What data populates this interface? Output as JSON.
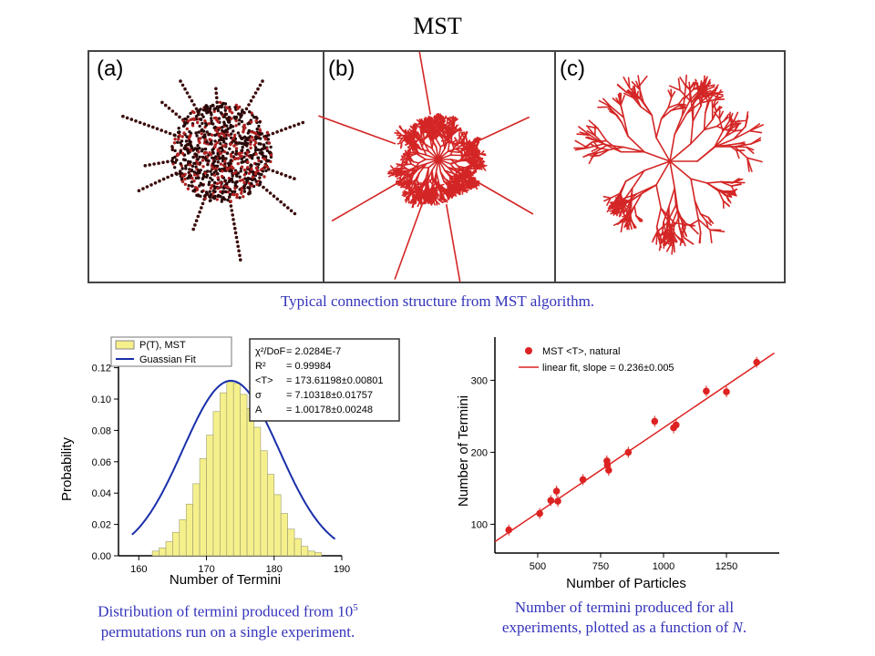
{
  "title": "MST",
  "panels": [
    {
      "label": "(a)"
    },
    {
      "label": "(b)"
    },
    {
      "label": "(c)"
    }
  ],
  "captions": {
    "top": "Typical connection structure from MST algorithm.",
    "left_line1": "Distribution of termini produced from 10",
    "left_sup": "5",
    "left_line2": "permutations run on a single experiment.",
    "right_line1": "Number of termini produced for all",
    "right_line2a": "experiments, plotted as a function of ",
    "right_line2b": "N",
    "right_line2c": "."
  },
  "colors": {
    "accent": "#dd2222",
    "histfill": "#f6f08c",
    "fit": "#1a2faa",
    "caption": "#3333bb"
  },
  "chart_data": [
    {
      "type": "bar",
      "xlabel": "Number of Termini",
      "ylabel": "Probability",
      "xlim": [
        157,
        190
      ],
      "ylim": [
        0,
        0.125
      ],
      "xticks": [
        160,
        170,
        180,
        190
      ],
      "yticks": [
        "0.00",
        "0.02",
        "0.04",
        "0.06",
        "0.08",
        "0.10",
        "0.12"
      ],
      "legend": [
        "P(T), MST",
        "Guassian Fit"
      ],
      "fit": {
        "mean": 173.61198,
        "sigma": 7.10318,
        "A": 1.00178
      },
      "stats": [
        {
          "name": "χ²/DoF",
          "value": "= 2.0284E-7"
        },
        {
          "name": "R²",
          "value": "= 0.99984"
        },
        {
          "name": "<T>",
          "value": "= 173.61198±0.00801"
        },
        {
          "name": "σ",
          "value": "= 7.10318±0.01757"
        },
        {
          "name": "A",
          "value": "= 1.00178±0.00248"
        }
      ],
      "bin_centers": [
        162.5,
        163.5,
        164.5,
        165.5,
        166.5,
        167.5,
        168.5,
        169.5,
        170.5,
        171.5,
        172.5,
        173.5,
        174.5,
        175.5,
        176.5,
        177.5,
        178.5,
        179.5,
        180.5,
        181.5,
        182.5,
        183.5,
        184.5,
        185.5,
        186.5
      ],
      "values": [
        0.003,
        0.005,
        0.009,
        0.015,
        0.023,
        0.033,
        0.046,
        0.062,
        0.077,
        0.092,
        0.104,
        0.111,
        0.11,
        0.103,
        0.094,
        0.082,
        0.067,
        0.052,
        0.039,
        0.027,
        0.017,
        0.011,
        0.006,
        0.003,
        0.002
      ]
    },
    {
      "type": "scatter",
      "xlabel": "Number of Particles",
      "ylabel": "Number of Termini",
      "xlim": [
        330,
        1460
      ],
      "ylim": [
        60,
        360
      ],
      "xticks": [
        500,
        750,
        1000,
        1250
      ],
      "yticks": [
        100,
        200,
        300
      ],
      "legend": [
        "MST <T>, natural",
        "linear fit, slope = 0.236±0.005"
      ],
      "fit": {
        "slope": 0.236,
        "intercept": -2
      },
      "points": [
        {
          "x": 385,
          "y": 92
        },
        {
          "x": 508,
          "y": 115
        },
        {
          "x": 552,
          "y": 133
        },
        {
          "x": 575,
          "y": 146
        },
        {
          "x": 580,
          "y": 132
        },
        {
          "x": 680,
          "y": 162
        },
        {
          "x": 775,
          "y": 188
        },
        {
          "x": 777,
          "y": 182
        },
        {
          "x": 782,
          "y": 175
        },
        {
          "x": 860,
          "y": 200
        },
        {
          "x": 965,
          "y": 243
        },
        {
          "x": 1040,
          "y": 234
        },
        {
          "x": 1050,
          "y": 238
        },
        {
          "x": 1170,
          "y": 285
        },
        {
          "x": 1250,
          "y": 284
        },
        {
          "x": 1370,
          "y": 325
        }
      ]
    }
  ]
}
